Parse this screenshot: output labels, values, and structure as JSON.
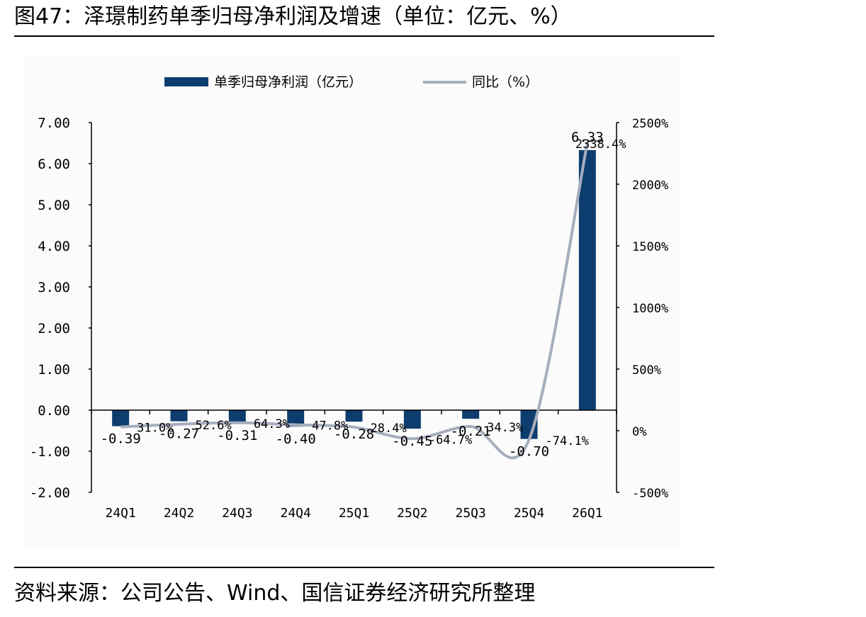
{
  "figure_title": "图47：泽璟制药单季归母净利润及增速（单位：亿元、%）",
  "source_note": "资料来源：公司公告、Wind、国信证券经济研究所整理",
  "colors": {
    "bar": "#0d3d6e",
    "line": "#a6adbe",
    "axis": "#000000"
  },
  "chart_data": {
    "type": "bar",
    "categories": [
      "24Q1",
      "24Q2",
      "24Q3",
      "24Q4",
      "25Q1",
      "25Q2",
      "25Q3",
      "25Q4",
      "26Q1"
    ],
    "series": [
      {
        "name": "单季归母净利润（亿元）",
        "type": "bar",
        "axis": "left",
        "values": [
          -0.39,
          -0.27,
          -0.31,
          -0.4,
          -0.28,
          -0.45,
          -0.21,
          -0.7,
          6.33
        ],
        "labels": [
          "-0.39",
          "-0.27",
          "-0.31",
          "-0.40",
          "-0.28",
          "-0.45",
          "-0.21",
          "-0.70",
          "6.33"
        ]
      },
      {
        "name": "同比（%）",
        "type": "line",
        "axis": "right",
        "values": [
          31.0,
          52.6,
          64.3,
          47.8,
          28.4,
          -64.7,
          34.3,
          -74.1,
          2338.4
        ],
        "labels": [
          "31.0%",
          "52.6%",
          "64.3%",
          "47.8%",
          "28.4%",
          "-64.7%",
          "34.3%",
          "-74.1%",
          "2338.4%"
        ]
      }
    ],
    "y_left": {
      "ylim": [
        -2,
        7
      ],
      "ticks": [
        7,
        6,
        5,
        4,
        3,
        2,
        1,
        0,
        -1,
        -2
      ],
      "tick_labels": [
        "7.00",
        "6.00",
        "5.00",
        "4.00",
        "3.00",
        "2.00",
        "1.00",
        "0.00",
        "-1.00",
        "-2.00"
      ]
    },
    "y_right": {
      "ylim": [
        -500,
        2500
      ],
      "ticks": [
        2500,
        2000,
        1500,
        1000,
        500,
        0,
        -500
      ],
      "tick_labels": [
        "2500%",
        "2000%",
        "1500%",
        "1000%",
        "500%",
        "0%",
        "-500%"
      ]
    },
    "legend": "top-center",
    "grid": false
  }
}
